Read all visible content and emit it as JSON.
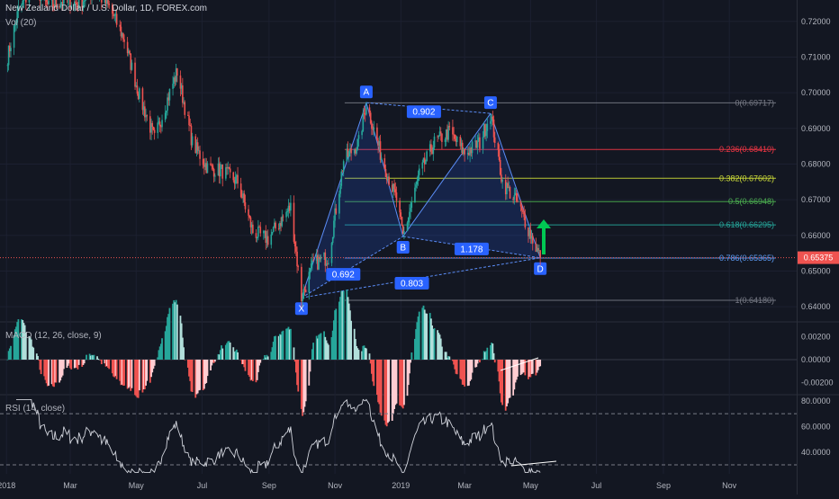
{
  "header": {
    "symbol": "New Zealand Dollar / U.S. Dollar, 1D, FOREX.com",
    "volume": "Vol (20)",
    "macd": "MACD (12, 26, close, 9)",
    "rsi": "RSI (14, close)"
  },
  "chart_data": [
    {
      "type": "line",
      "title": "New Zealand Dollar / U.S. Dollar, 1D, FOREX.com",
      "x_ticks": [
        "2018",
        "Mar",
        "May",
        "Jul",
        "Sep",
        "Nov",
        "2019",
        "Mar",
        "May",
        "Jul",
        "Sep",
        "Nov"
      ],
      "y_ticks": [
        "0.72000",
        "0.71000",
        "0.70000",
        "0.69000",
        "0.68000",
        "0.67000",
        "0.66000",
        "0.65000",
        "0.64000"
      ],
      "ylim": [
        0.636,
        0.726
      ],
      "last_price": "0.65375",
      "fib_levels": [
        {
          "label": "0(0.69717)",
          "value": 0.69717,
          "color": "#787b86"
        },
        {
          "label": "0.236(0.68410)",
          "value": 0.6841,
          "color": "#f23645"
        },
        {
          "label": "0.382(0.67602)",
          "value": 0.67602,
          "color": "#cddc39"
        },
        {
          "label": "0.5(0.66948)",
          "value": 0.66948,
          "color": "#4caf50"
        },
        {
          "label": "0.618(0.66295)",
          "value": 0.66295,
          "color": "#26a69a"
        },
        {
          "label": "0.786(0.65365)",
          "value": 0.65365,
          "color": "#5b9cf6"
        },
        {
          "label": "1(0.64180)",
          "value": 0.6418,
          "color": "#787b86"
        }
      ],
      "pattern_points": [
        {
          "label": "X",
          "date": "2018-10-01",
          "price": 0.6425
        },
        {
          "label": "A",
          "date": "2018-11-30",
          "price": 0.6972
        },
        {
          "label": "B",
          "date": "2019-01-03",
          "price": 0.6597
        },
        {
          "label": "C",
          "date": "2019-03-25",
          "price": 0.6942
        },
        {
          "label": "D",
          "date": "2019-05-10",
          "price": 0.6537
        }
      ],
      "pattern_ratios": [
        "0.902",
        "0.692",
        "1.178",
        "0.803"
      ],
      "price_path": [
        [
          "2018-01-02",
          0.71
        ],
        [
          "2018-01-12",
          0.723
        ],
        [
          "2018-01-26",
          0.73
        ],
        [
          "2018-02-09",
          0.724
        ],
        [
          "2018-02-23",
          0.726
        ],
        [
          "2018-03-09",
          0.725
        ],
        [
          "2018-03-23",
          0.729
        ],
        [
          "2018-04-06",
          0.724
        ],
        [
          "2018-04-20",
          0.715
        ],
        [
          "2018-05-04",
          0.699
        ],
        [
          "2018-05-18",
          0.687
        ],
        [
          "2018-06-01",
          0.7
        ],
        [
          "2018-06-08",
          0.706
        ],
        [
          "2018-06-22",
          0.686
        ],
        [
          "2018-07-06",
          0.679
        ],
        [
          "2018-07-20",
          0.678
        ],
        [
          "2018-08-03",
          0.675
        ],
        [
          "2018-08-17",
          0.661
        ],
        [
          "2018-08-31",
          0.659
        ],
        [
          "2018-09-14",
          0.665
        ],
        [
          "2018-09-21",
          0.668
        ],
        [
          "2018-10-01",
          0.6425
        ],
        [
          "2018-10-12",
          0.652
        ],
        [
          "2018-10-26",
          0.654
        ],
        [
          "2018-11-09",
          0.681
        ],
        [
          "2018-11-23",
          0.686
        ],
        [
          "2018-11-30",
          0.6972
        ],
        [
          "2018-12-14",
          0.682
        ],
        [
          "2018-12-28",
          0.67
        ],
        [
          "2019-01-03",
          0.6597
        ],
        [
          "2019-01-18",
          0.677
        ],
        [
          "2019-02-01",
          0.686
        ],
        [
          "2019-02-15",
          0.689
        ],
        [
          "2019-03-01",
          0.683
        ],
        [
          "2019-03-15",
          0.686
        ],
        [
          "2019-03-25",
          0.6942
        ],
        [
          "2019-04-05",
          0.675
        ],
        [
          "2019-04-19",
          0.669
        ],
        [
          "2019-04-26",
          0.664
        ],
        [
          "2019-05-10",
          0.6537
        ]
      ]
    },
    {
      "type": "bar",
      "title": "MACD (12, 26, close, 9)",
      "y_ticks": [
        "0.00200",
        "0.00000",
        "-0.00200"
      ],
      "ylim": [
        -0.003,
        0.003
      ]
    },
    {
      "type": "line",
      "title": "RSI (14, close)",
      "y_ticks": [
        "80.0000",
        "60.0000",
        "40.0000"
      ],
      "ylim": [
        23,
        82
      ],
      "bands": [
        70,
        30
      ]
    }
  ],
  "colors": {
    "background": "#131722",
    "grid": "#1e222d",
    "up": "#26a69a",
    "down": "#ef5350",
    "pattern": "#2962ff",
    "arrow": "#00c853"
  }
}
